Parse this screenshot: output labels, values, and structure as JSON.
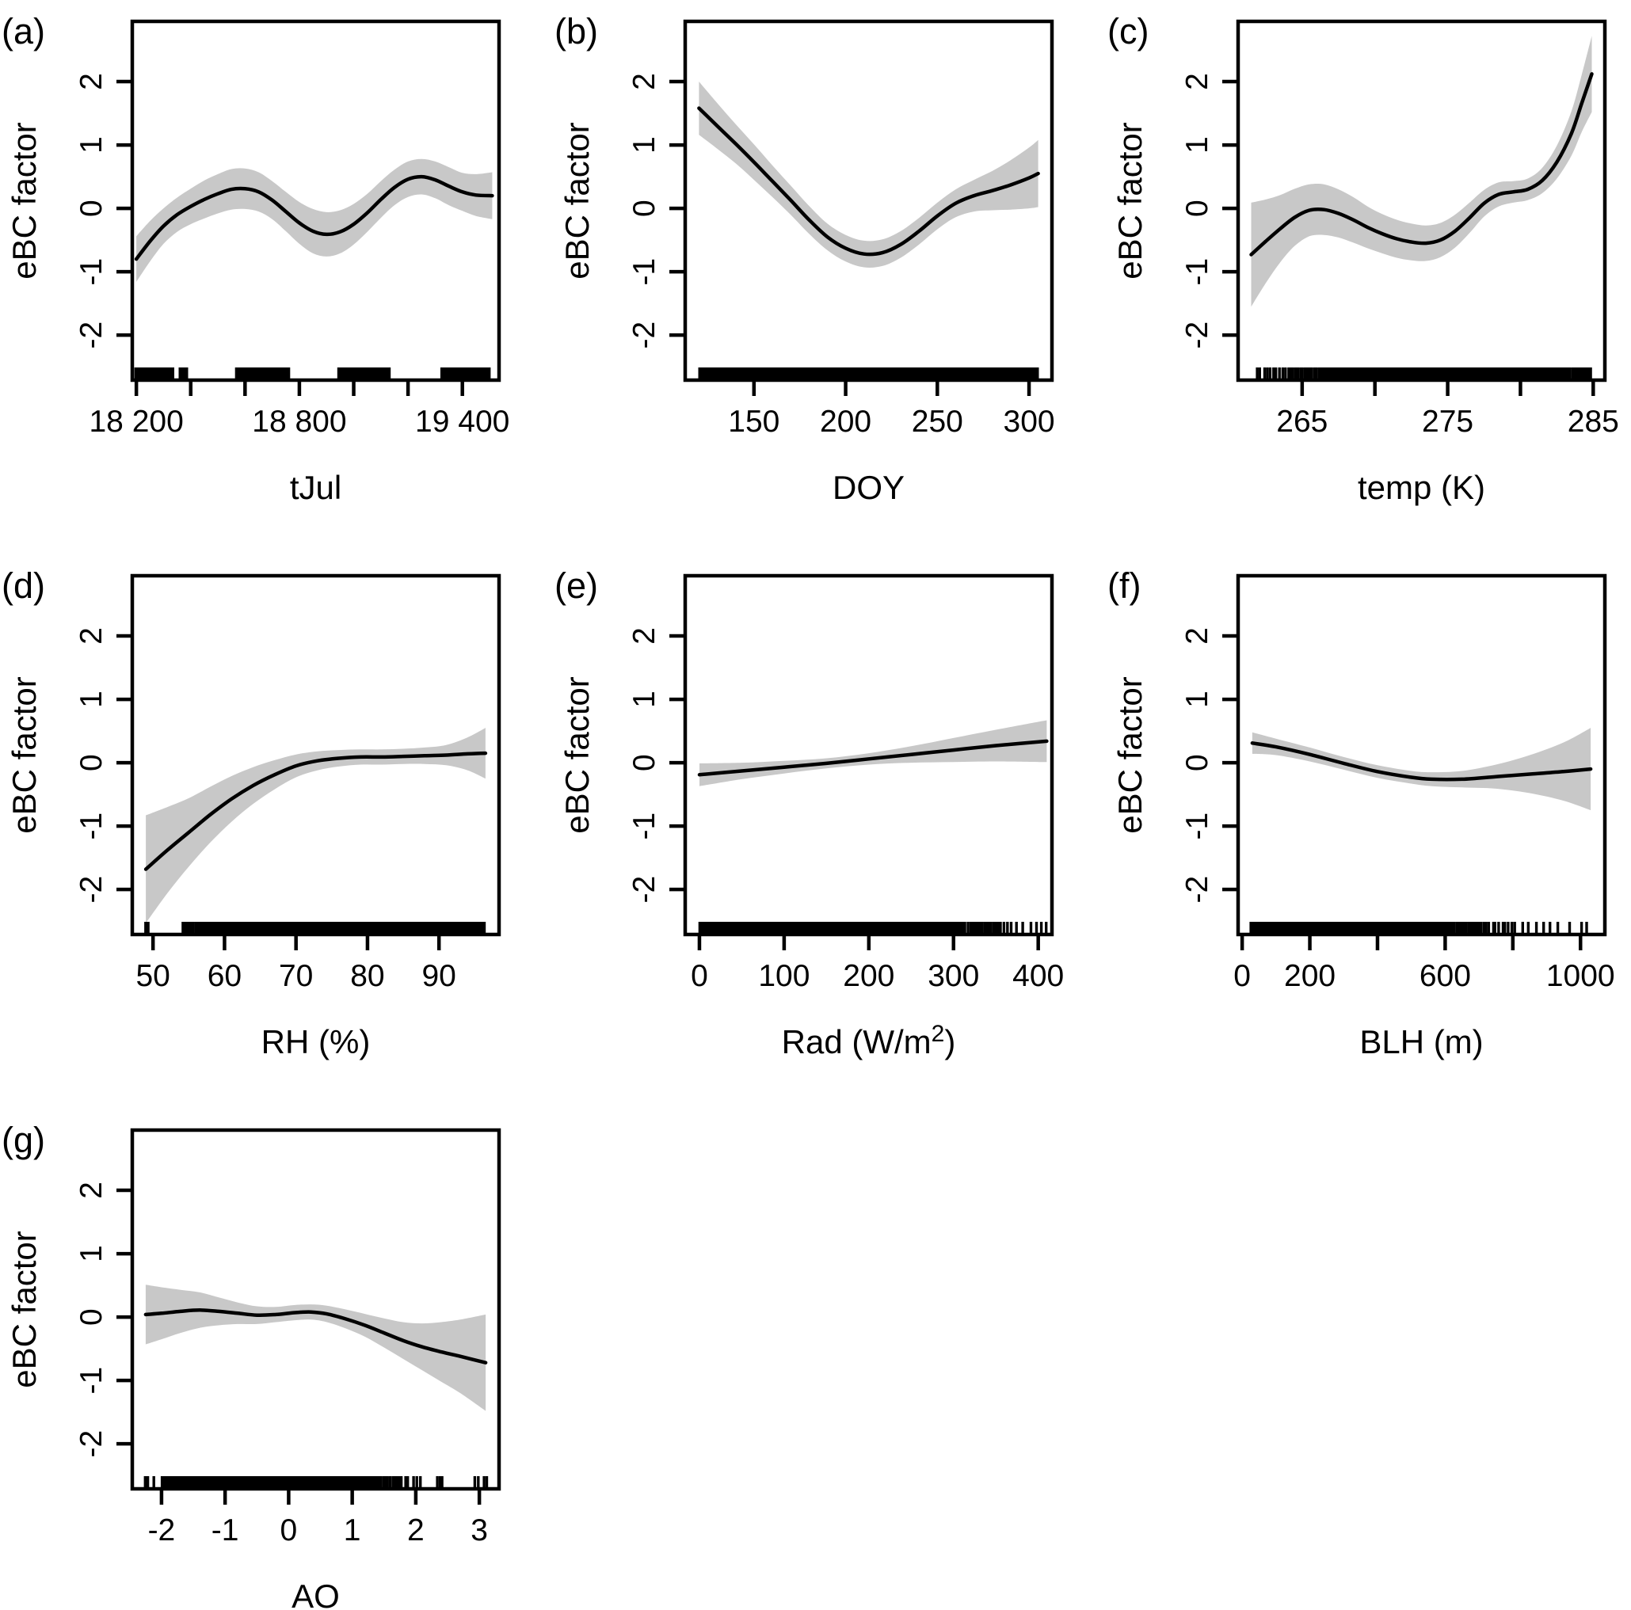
{
  "figure_title": "",
  "colors": {
    "background": "#ffffff",
    "band": "#c8c8c8",
    "line": "#000000",
    "text": "#000000"
  },
  "chart_data": {
    "type": "line",
    "description": "GAM smooth terms with 95% confidence bands and data rugs",
    "ylabel": "eBC factor",
    "ylim": [
      -2.71,
      2.95
    ],
    "y_ticks": [
      {
        "v": -2,
        "label": "-2"
      },
      {
        "v": -1,
        "label": "-1"
      },
      {
        "v": 0,
        "label": "0"
      },
      {
        "v": 1,
        "label": "1"
      },
      {
        "v": 2,
        "label": "2"
      }
    ],
    "panels": [
      {
        "letter": "(a)",
        "xlabel": "tJul",
        "col": 0,
        "row": 0,
        "xlim": [
          18185,
          19535
        ],
        "x_ticks": [
          {
            "v": 18200,
            "label": "18 200"
          },
          {
            "v": 18400,
            "label": ""
          },
          {
            "v": 18600,
            "label": ""
          },
          {
            "v": 18800,
            "label": "18 800"
          },
          {
            "v": 19000,
            "label": ""
          },
          {
            "v": 19200,
            "label": ""
          },
          {
            "v": 19400,
            "label": "19 400"
          }
        ],
        "x": [
          18200,
          18250,
          18300,
          18350,
          18400,
          18450,
          18500,
          18550,
          18600,
          18650,
          18700,
          18750,
          18800,
          18850,
          18900,
          18950,
          19000,
          19050,
          19100,
          19150,
          19200,
          19250,
          19300,
          19350,
          19400,
          19450,
          19510
        ],
        "fit": [
          -0.8,
          -0.52,
          -0.28,
          -0.1,
          0.03,
          0.14,
          0.23,
          0.3,
          0.31,
          0.26,
          0.13,
          -0.05,
          -0.23,
          -0.36,
          -0.41,
          -0.37,
          -0.25,
          -0.07,
          0.14,
          0.33,
          0.46,
          0.5,
          0.45,
          0.35,
          0.26,
          0.21,
          0.2
        ],
        "hw_95ci": [
          0.36,
          0.32,
          0.28,
          0.27,
          0.28,
          0.3,
          0.31,
          0.32,
          0.32,
          0.31,
          0.3,
          0.31,
          0.33,
          0.35,
          0.35,
          0.34,
          0.32,
          0.3,
          0.29,
          0.28,
          0.28,
          0.28,
          0.29,
          0.3,
          0.3,
          0.33,
          0.37
        ],
        "rug_segments": [
          [
            18197,
            18337,
            40
          ],
          [
            18358,
            18388,
            9
          ],
          [
            18567,
            18764,
            48
          ],
          [
            18943,
            19134,
            50
          ],
          [
            19322,
            19500,
            34
          ]
        ]
      },
      {
        "letter": "(b)",
        "xlabel": "DOY",
        "col": 1,
        "row": 0,
        "xlim": [
          112.5,
          312.5
        ],
        "x_ticks": [
          {
            "v": 150,
            "label": "150"
          },
          {
            "v": 200,
            "label": "200"
          },
          {
            "v": 250,
            "label": "250"
          },
          {
            "v": 300,
            "label": "300"
          }
        ],
        "x": [
          120,
          130,
          140,
          150,
          160,
          170,
          180,
          190,
          200,
          210,
          220,
          230,
          240,
          250,
          260,
          270,
          280,
          290,
          300,
          305
        ],
        "fit": [
          1.58,
          1.3,
          1.02,
          0.73,
          0.43,
          0.13,
          -0.18,
          -0.45,
          -0.63,
          -0.72,
          -0.7,
          -0.57,
          -0.36,
          -0.12,
          0.08,
          0.2,
          0.28,
          0.37,
          0.48,
          0.55
        ],
        "hw_95ci": [
          0.42,
          0.36,
          0.31,
          0.28,
          0.25,
          0.23,
          0.22,
          0.21,
          0.21,
          0.21,
          0.21,
          0.21,
          0.21,
          0.21,
          0.22,
          0.25,
          0.31,
          0.39,
          0.48,
          0.53
        ],
        "rug_segments": [
          [
            120,
            305,
            420
          ]
        ]
      },
      {
        "letter": "(c)",
        "xlabel": "temp (K)",
        "col": 2,
        "row": 0,
        "xlim": [
          260.6,
          285.8
        ],
        "x_ticks": [
          {
            "v": 265,
            "label": "265"
          },
          {
            "v": 270,
            "label": ""
          },
          {
            "v": 275,
            "label": "275"
          },
          {
            "v": 280,
            "label": ""
          },
          {
            "v": 285,
            "label": "285"
          }
        ],
        "x": [
          261.5,
          262.5,
          263.5,
          264.5,
          265.5,
          266.5,
          267.5,
          268.5,
          269.5,
          270.5,
          271.5,
          272.5,
          273.5,
          274.5,
          275.5,
          276.5,
          277.5,
          278.5,
          279.5,
          280.5,
          281.5,
          282.5,
          283.5,
          284.2,
          284.9
        ],
        "fit": [
          -0.73,
          -0.52,
          -0.32,
          -0.14,
          -0.03,
          -0.02,
          -0.08,
          -0.18,
          -0.3,
          -0.4,
          -0.48,
          -0.53,
          -0.55,
          -0.5,
          -0.36,
          -0.15,
          0.08,
          0.22,
          0.26,
          0.3,
          0.44,
          0.73,
          1.18,
          1.65,
          2.12
        ],
        "hw_95ci": [
          0.82,
          0.66,
          0.53,
          0.45,
          0.41,
          0.4,
          0.38,
          0.36,
          0.33,
          0.31,
          0.3,
          0.29,
          0.28,
          0.27,
          0.26,
          0.24,
          0.21,
          0.19,
          0.17,
          0.17,
          0.2,
          0.26,
          0.35,
          0.45,
          0.6
        ],
        "rug_segments": [
          [
            261.8,
            264,
            10
          ],
          [
            264,
            267,
            22
          ],
          [
            267,
            270,
            34
          ],
          [
            270,
            272.5,
            50
          ],
          [
            272.5,
            281,
            280
          ],
          [
            281,
            283,
            28
          ],
          [
            283,
            284.9,
            15
          ]
        ]
      },
      {
        "letter": "(d)",
        "xlabel": "RH (%)",
        "col": 0,
        "row": 1,
        "xlim": [
          47.1,
          98.4
        ],
        "x_ticks": [
          {
            "v": 50,
            "label": "50"
          },
          {
            "v": 60,
            "label": "60"
          },
          {
            "v": 70,
            "label": "70"
          },
          {
            "v": 80,
            "label": "80"
          },
          {
            "v": 90,
            "label": "90"
          }
        ],
        "x": [
          49,
          52,
          55,
          58,
          61,
          64,
          67,
          70,
          73,
          76,
          79,
          82,
          85,
          88,
          91,
          94,
          96.5
        ],
        "fit": [
          -1.68,
          -1.38,
          -1.1,
          -0.82,
          -0.57,
          -0.36,
          -0.19,
          -0.05,
          0.03,
          0.07,
          0.09,
          0.09,
          0.1,
          0.11,
          0.12,
          0.14,
          0.15
        ],
        "hw_95ci": [
          0.85,
          0.68,
          0.54,
          0.44,
          0.36,
          0.29,
          0.23,
          0.18,
          0.15,
          0.13,
          0.12,
          0.12,
          0.12,
          0.13,
          0.16,
          0.26,
          0.4
        ],
        "rug_segments": [
          [
            48.9,
            49.4,
            2
          ],
          [
            54,
            56,
            7
          ],
          [
            56,
            60,
            26
          ],
          [
            60,
            64,
            36
          ],
          [
            64,
            68,
            44
          ],
          [
            68,
            75,
            95
          ],
          [
            75,
            85,
            130
          ],
          [
            85,
            93,
            85
          ],
          [
            93,
            96.5,
            13
          ]
        ]
      },
      {
        "letter": "(e)",
        "xlabel": "Rad (W/m2)",
        "xlabel_parts": [
          {
            "t": "Rad (W/m",
            "sup": false
          },
          {
            "t": "2",
            "sup": true
          },
          {
            "t": ")",
            "sup": false
          }
        ],
        "col": 1,
        "row": 1,
        "xlim": [
          -16.8,
          416.2
        ],
        "x_ticks": [
          {
            "v": 0,
            "label": "0"
          },
          {
            "v": 100,
            "label": "100"
          },
          {
            "v": 200,
            "label": "200"
          },
          {
            "v": 300,
            "label": "300"
          },
          {
            "v": 400,
            "label": "400"
          }
        ],
        "x": [
          0,
          50,
          100,
          150,
          200,
          250,
          300,
          350,
          410
        ],
        "fit": [
          -0.19,
          -0.13,
          -0.07,
          -0.01,
          0.06,
          0.13,
          0.2,
          0.27,
          0.34
        ],
        "hw_95ci": [
          0.18,
          0.13,
          0.1,
          0.08,
          0.09,
          0.13,
          0.19,
          0.25,
          0.33
        ],
        "rug_segments": [
          [
            0,
            50,
            95
          ],
          [
            50,
            120,
            105
          ],
          [
            120,
            200,
            105
          ],
          [
            200,
            260,
            75
          ],
          [
            260,
            310,
            48
          ],
          [
            310,
            360,
            18
          ],
          [
            360,
            412,
            8
          ]
        ]
      },
      {
        "letter": "(f)",
        "xlabel": "BLH (m)",
        "col": 2,
        "row": 1,
        "xlim": [
          -12,
          1072
        ],
        "x_ticks": [
          {
            "v": 0,
            "label": "0"
          },
          {
            "v": 200,
            "label": "200"
          },
          {
            "v": 400,
            "label": ""
          },
          {
            "v": 600,
            "label": "600"
          },
          {
            "v": 800,
            "label": ""
          },
          {
            "v": 1000,
            "label": "1000"
          }
        ],
        "x": [
          30,
          100,
          200,
          300,
          400,
          500,
          560,
          650,
          750,
          850,
          950,
          1030
        ],
        "fit": [
          0.31,
          0.25,
          0.13,
          -0.01,
          -0.14,
          -0.23,
          -0.26,
          -0.26,
          -0.22,
          -0.18,
          -0.14,
          -0.1
        ],
        "hw_95ci": [
          0.17,
          0.13,
          0.11,
          0.1,
          0.1,
          0.1,
          0.11,
          0.13,
          0.19,
          0.3,
          0.46,
          0.65
        ],
        "rug_segments": [
          [
            25,
            150,
            125
          ],
          [
            150,
            300,
            135
          ],
          [
            300,
            450,
            95
          ],
          [
            450,
            600,
            65
          ],
          [
            600,
            700,
            20
          ],
          [
            700,
            800,
            11
          ],
          [
            800,
            900,
            5
          ],
          [
            900,
            1040,
            5
          ]
        ]
      },
      {
        "letter": "(g)",
        "xlabel": "AO",
        "col": 0,
        "row": 2,
        "xlim": [
          -2.46,
          3.31
        ],
        "x_ticks": [
          {
            "v": -2,
            "label": "-2"
          },
          {
            "v": -1,
            "label": "-1"
          },
          {
            "v": 0,
            "label": "0"
          },
          {
            "v": 1,
            "label": "1"
          },
          {
            "v": 2,
            "label": "2"
          },
          {
            "v": 3,
            "label": "3"
          }
        ],
        "x": [
          -2.25,
          -2.0,
          -1.7,
          -1.4,
          -1.1,
          -0.8,
          -0.5,
          -0.2,
          0.1,
          0.35,
          0.6,
          0.9,
          1.2,
          1.5,
          1.8,
          2.1,
          2.4,
          2.7,
          3.1
        ],
        "fit": [
          0.04,
          0.06,
          0.09,
          0.11,
          0.09,
          0.06,
          0.03,
          0.04,
          0.07,
          0.08,
          0.05,
          -0.03,
          -0.13,
          -0.25,
          -0.37,
          -0.47,
          -0.55,
          -0.62,
          -0.72
        ],
        "hw_95ci": [
          0.47,
          0.41,
          0.34,
          0.28,
          0.22,
          0.17,
          0.14,
          0.12,
          0.12,
          0.12,
          0.13,
          0.15,
          0.18,
          0.23,
          0.29,
          0.37,
          0.47,
          0.58,
          0.76
        ],
        "rug_segments": [
          [
            -2.3,
            -2.1,
            3
          ],
          [
            -2.0,
            -1.6,
            14
          ],
          [
            -1.6,
            -1.2,
            32
          ],
          [
            -1.2,
            -0.6,
            65
          ],
          [
            -0.6,
            0.0,
            85
          ],
          [
            0.0,
            0.6,
            85
          ],
          [
            0.6,
            1.0,
            48
          ],
          [
            1.0,
            1.4,
            28
          ],
          [
            1.4,
            1.8,
            11
          ],
          [
            1.8,
            2.1,
            5
          ],
          [
            2.3,
            2.45,
            3
          ],
          [
            2.9,
            3.15,
            4
          ]
        ]
      }
    ]
  }
}
